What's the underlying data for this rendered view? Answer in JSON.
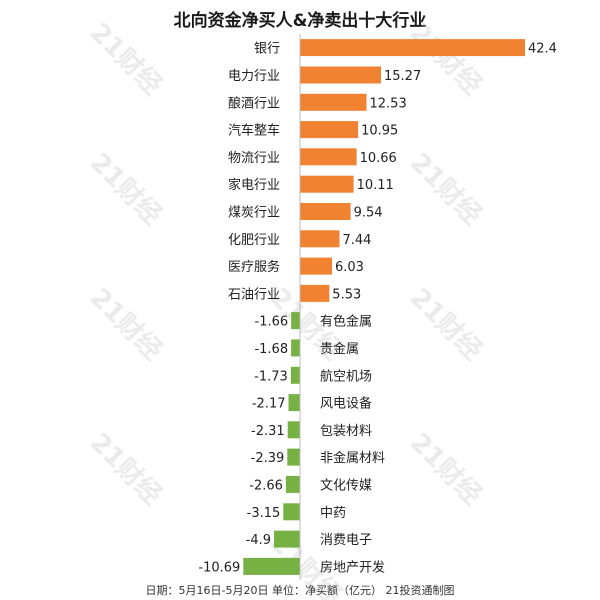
{
  "title": "北向资金净买人&净卖出十大行业",
  "footer": "日期：5月16日-5月20日 单位：净买额（亿元） 21投资通制图",
  "watermark": "21财经",
  "colors": {
    "positive": "#f08232",
    "negative": "#77b144",
    "text": "#222222"
  },
  "chart_data": {
    "type": "bar",
    "orientation": "horizontal",
    "title": "北向资金净买人&净卖出十大行业",
    "categories": [
      "银行",
      "电力行业",
      "酿酒行业",
      "汽车整车",
      "物流行业",
      "家电行业",
      "煤炭行业",
      "化肥行业",
      "医疗服务",
      "石油行业",
      "有色金属",
      "贵金属",
      "航空机场",
      "风电设备",
      "包装材料",
      "非金属材料",
      "文化传媒",
      "中药",
      "消费电子",
      "房地产开发"
    ],
    "values": [
      42.4,
      15.27,
      12.53,
      10.95,
      10.66,
      10.11,
      9.54,
      7.44,
      6.03,
      5.53,
      -1.66,
      -1.68,
      -1.73,
      -2.17,
      -2.31,
      -2.39,
      -2.66,
      -3.15,
      -4.9,
      -10.69
    ],
    "value_labels": [
      "42.4",
      "15.27",
      "12.53",
      "10.95",
      "10.66",
      "10.11",
      "9.54",
      "7.44",
      "6.03",
      "5.53",
      "-1.66",
      "-1.68",
      "-1.73",
      "-2.17",
      "-2.31",
      "-2.39",
      "-2.66",
      "-3.15",
      "-4.9",
      "-10.69"
    ],
    "xlim": [
      -10.69,
      42.4
    ],
    "grid": false,
    "legend": "none"
  }
}
